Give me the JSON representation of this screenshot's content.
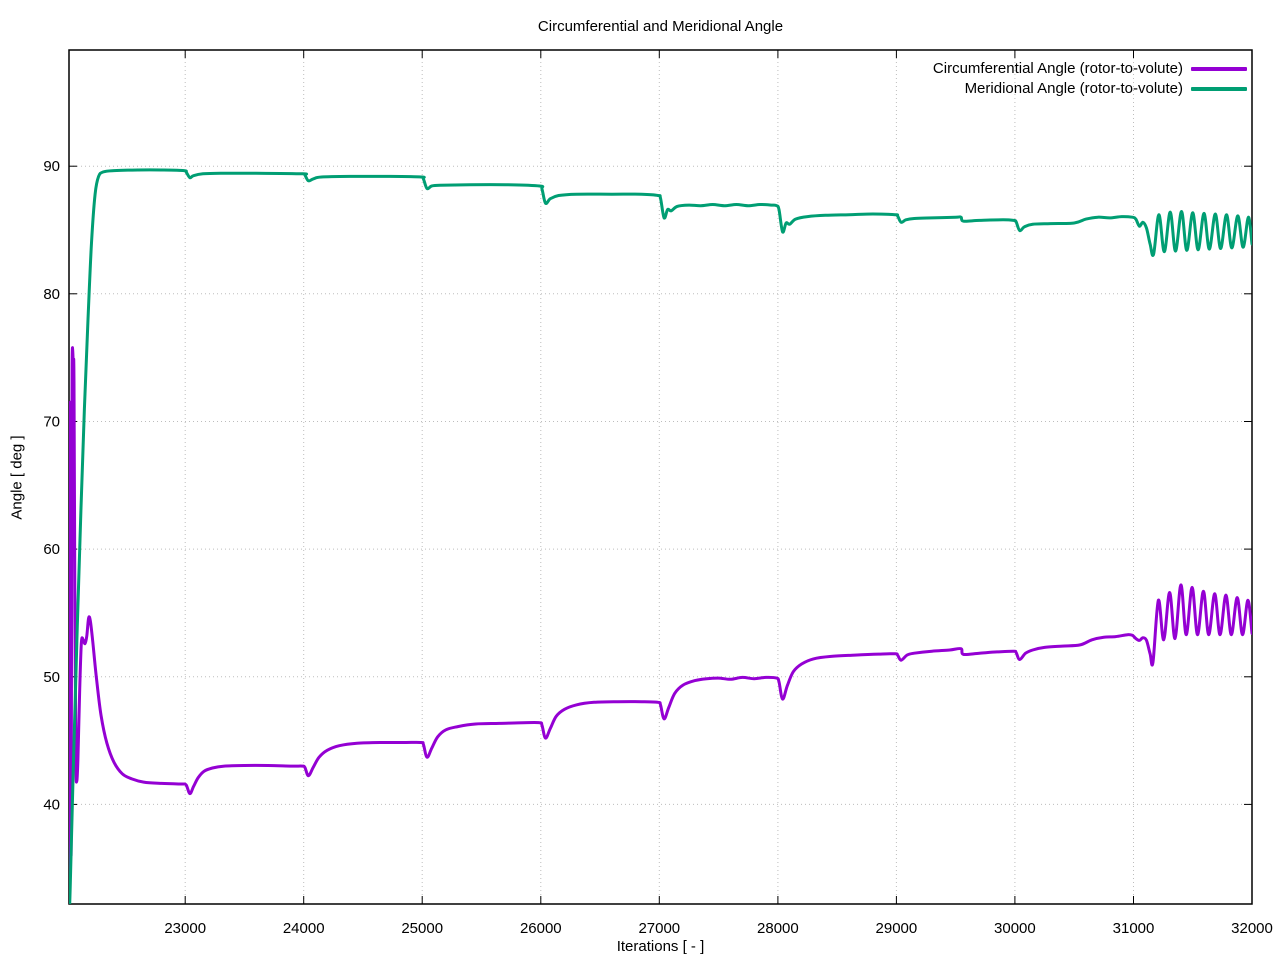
{
  "chart_data": {
    "type": "line",
    "title": "Circumferential and Meridional Angle",
    "xlabel": "Iterations [ - ]",
    "ylabel": "Angle [ deg ]",
    "xlim": [
      22020,
      32000
    ],
    "ylim": [
      32.2,
      99.1
    ],
    "xticks": [
      23000,
      24000,
      25000,
      26000,
      27000,
      28000,
      29000,
      30000,
      31000,
      32000
    ],
    "yticks": [
      40,
      50,
      60,
      70,
      80,
      90
    ],
    "grid": "dotted",
    "grid_color": "#bdbdbd",
    "border_color": "#000000",
    "legend_position": "top-right-inside",
    "series": [
      {
        "name": "Circumferential Angle (rotor-to-volute)",
        "color": "#9400d3",
        "points": [
          [
            22022,
            32.2
          ],
          [
            22026,
            55
          ],
          [
            22030,
            71.5
          ],
          [
            22034,
            54
          ],
          [
            22038,
            36
          ],
          [
            22042,
            56
          ],
          [
            22046,
            74.3
          ],
          [
            22056,
            74.5
          ],
          [
            22062,
            73
          ],
          [
            22070,
            55
          ],
          [
            22078,
            43.5
          ],
          [
            22085,
            41.8
          ],
          [
            22095,
            43.5
          ],
          [
            22110,
            49
          ],
          [
            22125,
            52.7
          ],
          [
            22140,
            52.9
          ],
          [
            22155,
            52.6
          ],
          [
            22170,
            53.2
          ],
          [
            22185,
            54.6
          ],
          [
            22200,
            54.4
          ],
          [
            22220,
            52.8
          ],
          [
            22250,
            50.0
          ],
          [
            22290,
            47.0
          ],
          [
            22340,
            44.8
          ],
          [
            22400,
            43.3
          ],
          [
            22470,
            42.4
          ],
          [
            22550,
            42.0
          ],
          [
            22650,
            41.75
          ],
          [
            22800,
            41.65
          ],
          [
            22950,
            41.6
          ],
          [
            22990,
            41.6
          ],
          [
            23010,
            41.5
          ],
          [
            23040,
            40.85
          ],
          [
            23070,
            41.4
          ],
          [
            23110,
            42.1
          ],
          [
            23160,
            42.6
          ],
          [
            23230,
            42.85
          ],
          [
            23330,
            43.0
          ],
          [
            23500,
            43.05
          ],
          [
            23700,
            43.05
          ],
          [
            23900,
            43.0
          ],
          [
            23990,
            43.0
          ],
          [
            24010,
            42.9
          ],
          [
            24040,
            42.25
          ],
          [
            24080,
            42.9
          ],
          [
            24130,
            43.7
          ],
          [
            24200,
            44.25
          ],
          [
            24300,
            44.6
          ],
          [
            24450,
            44.8
          ],
          [
            24650,
            44.85
          ],
          [
            24850,
            44.85
          ],
          [
            24990,
            44.85
          ],
          [
            25010,
            44.7
          ],
          [
            25040,
            43.7
          ],
          [
            25080,
            44.4
          ],
          [
            25130,
            45.3
          ],
          [
            25200,
            45.85
          ],
          [
            25300,
            46.1
          ],
          [
            25450,
            46.3
          ],
          [
            25650,
            46.35
          ],
          [
            25850,
            46.4
          ],
          [
            25990,
            46.4
          ],
          [
            26010,
            46.2
          ],
          [
            26040,
            45.2
          ],
          [
            26080,
            45.95
          ],
          [
            26130,
            46.9
          ],
          [
            26200,
            47.45
          ],
          [
            26300,
            47.8
          ],
          [
            26450,
            48.0
          ],
          [
            26650,
            48.05
          ],
          [
            26850,
            48.05
          ],
          [
            26990,
            48.0
          ],
          [
            27010,
            47.8
          ],
          [
            27040,
            46.7
          ],
          [
            27080,
            47.6
          ],
          [
            27130,
            48.7
          ],
          [
            27200,
            49.35
          ],
          [
            27300,
            49.7
          ],
          [
            27400,
            49.85
          ],
          [
            27500,
            49.9
          ],
          [
            27600,
            49.8
          ],
          [
            27700,
            49.95
          ],
          [
            27800,
            49.85
          ],
          [
            27900,
            49.95
          ],
          [
            27990,
            49.9
          ],
          [
            28010,
            49.6
          ],
          [
            28040,
            48.25
          ],
          [
            28080,
            49.3
          ],
          [
            28130,
            50.4
          ],
          [
            28200,
            51.0
          ],
          [
            28300,
            51.4
          ],
          [
            28450,
            51.6
          ],
          [
            28650,
            51.7
          ],
          [
            28850,
            51.78
          ],
          [
            28990,
            51.8
          ],
          [
            29010,
            51.7
          ],
          [
            29040,
            51.3
          ],
          [
            29090,
            51.7
          ],
          [
            29150,
            51.85
          ],
          [
            29300,
            52.0
          ],
          [
            29450,
            52.1
          ],
          [
            29545,
            52.2
          ],
          [
            29565,
            51.75
          ],
          [
            29700,
            51.85
          ],
          [
            29850,
            51.95
          ],
          [
            29990,
            52.0
          ],
          [
            30010,
            51.9
          ],
          [
            30040,
            51.35
          ],
          [
            30090,
            51.85
          ],
          [
            30150,
            52.1
          ],
          [
            30250,
            52.3
          ],
          [
            30400,
            52.4
          ],
          [
            30550,
            52.5
          ],
          [
            30650,
            52.9
          ],
          [
            30750,
            53.1
          ],
          [
            30850,
            53.15
          ],
          [
            30950,
            53.3
          ],
          [
            30990,
            53.25
          ],
          [
            31020,
            53.0
          ],
          [
            31050,
            52.85
          ],
          [
            31080,
            53.05
          ],
          [
            31110,
            52.85
          ],
          [
            31140,
            51.8
          ],
          [
            31165,
            51.15
          ],
          [
            31210,
            56.0
          ],
          [
            31255,
            52.9
          ],
          [
            31305,
            56.6
          ],
          [
            31350,
            53.0
          ],
          [
            31400,
            57.2
          ],
          [
            31445,
            53.3
          ],
          [
            31495,
            57.0
          ],
          [
            31540,
            53.3
          ],
          [
            31590,
            56.7
          ],
          [
            31635,
            53.3
          ],
          [
            31685,
            56.5
          ],
          [
            31730,
            53.3
          ],
          [
            31780,
            56.4
          ],
          [
            31825,
            53.3
          ],
          [
            31875,
            56.2
          ],
          [
            31920,
            53.3
          ],
          [
            31965,
            56.0
          ],
          [
            32000,
            53.4
          ]
        ]
      },
      {
        "name": "Meridional Angle (rotor-to-volute)",
        "color": "#009e73",
        "points": [
          [
            22025,
            32.2
          ],
          [
            22030,
            33.5
          ],
          [
            22060,
            44
          ],
          [
            22090,
            54
          ],
          [
            22120,
            63
          ],
          [
            22150,
            71
          ],
          [
            22180,
            78
          ],
          [
            22210,
            84
          ],
          [
            22240,
            87.8
          ],
          [
            22270,
            89.2
          ],
          [
            22310,
            89.55
          ],
          [
            22400,
            89.65
          ],
          [
            22600,
            89.7
          ],
          [
            22800,
            89.7
          ],
          [
            22990,
            89.65
          ],
          [
            23010,
            89.5
          ],
          [
            23040,
            89.1
          ],
          [
            23070,
            89.25
          ],
          [
            23150,
            89.4
          ],
          [
            23300,
            89.45
          ],
          [
            23600,
            89.45
          ],
          [
            23990,
            89.4
          ],
          [
            24010,
            89.3
          ],
          [
            24040,
            88.85
          ],
          [
            24080,
            89.0
          ],
          [
            24150,
            89.15
          ],
          [
            24400,
            89.2
          ],
          [
            24700,
            89.2
          ],
          [
            24990,
            89.15
          ],
          [
            25010,
            89.0
          ],
          [
            25040,
            88.25
          ],
          [
            25080,
            88.45
          ],
          [
            25150,
            88.5
          ],
          [
            25400,
            88.55
          ],
          [
            25700,
            88.55
          ],
          [
            25990,
            88.45
          ],
          [
            26010,
            88.2
          ],
          [
            26040,
            87.1
          ],
          [
            26080,
            87.45
          ],
          [
            26150,
            87.7
          ],
          [
            26300,
            87.8
          ],
          [
            26600,
            87.8
          ],
          [
            26850,
            87.8
          ],
          [
            26990,
            87.7
          ],
          [
            27010,
            87.5
          ],
          [
            27040,
            85.95
          ],
          [
            27070,
            86.6
          ],
          [
            27100,
            86.5
          ],
          [
            27150,
            86.85
          ],
          [
            27250,
            86.95
          ],
          [
            27350,
            86.9
          ],
          [
            27450,
            87.0
          ],
          [
            27550,
            86.9
          ],
          [
            27650,
            87.0
          ],
          [
            27750,
            86.9
          ],
          [
            27850,
            87.0
          ],
          [
            27950,
            86.95
          ],
          [
            27990,
            86.9
          ],
          [
            28010,
            86.6
          ],
          [
            28040,
            84.85
          ],
          [
            28070,
            85.55
          ],
          [
            28100,
            85.45
          ],
          [
            28150,
            85.85
          ],
          [
            28250,
            86.05
          ],
          [
            28400,
            86.15
          ],
          [
            28600,
            86.2
          ],
          [
            28800,
            86.25
          ],
          [
            28990,
            86.2
          ],
          [
            29010,
            86.1
          ],
          [
            29040,
            85.6
          ],
          [
            29080,
            85.8
          ],
          [
            29150,
            85.9
          ],
          [
            29300,
            85.95
          ],
          [
            29500,
            86.0
          ],
          [
            29545,
            86.0
          ],
          [
            29565,
            85.7
          ],
          [
            29700,
            85.75
          ],
          [
            29900,
            85.8
          ],
          [
            29990,
            85.75
          ],
          [
            30010,
            85.65
          ],
          [
            30040,
            84.95
          ],
          [
            30080,
            85.25
          ],
          [
            30150,
            85.45
          ],
          [
            30300,
            85.5
          ],
          [
            30500,
            85.55
          ],
          [
            30600,
            85.85
          ],
          [
            30700,
            86.0
          ],
          [
            30800,
            85.95
          ],
          [
            30900,
            86.05
          ],
          [
            30990,
            86.0
          ],
          [
            31020,
            85.85
          ],
          [
            31050,
            85.3
          ],
          [
            31080,
            85.6
          ],
          [
            31110,
            85.15
          ],
          [
            31140,
            83.9
          ],
          [
            31170,
            83.1
          ],
          [
            31215,
            86.2
          ],
          [
            31260,
            83.3
          ],
          [
            31310,
            86.4
          ],
          [
            31355,
            83.35
          ],
          [
            31405,
            86.45
          ],
          [
            31450,
            83.4
          ],
          [
            31500,
            86.35
          ],
          [
            31545,
            83.45
          ],
          [
            31595,
            86.3
          ],
          [
            31640,
            83.5
          ],
          [
            31690,
            86.25
          ],
          [
            31735,
            83.55
          ],
          [
            31785,
            86.2
          ],
          [
            31830,
            83.6
          ],
          [
            31880,
            86.1
          ],
          [
            31925,
            83.65
          ],
          [
            31970,
            86.0
          ],
          [
            32000,
            83.9
          ]
        ]
      }
    ]
  }
}
